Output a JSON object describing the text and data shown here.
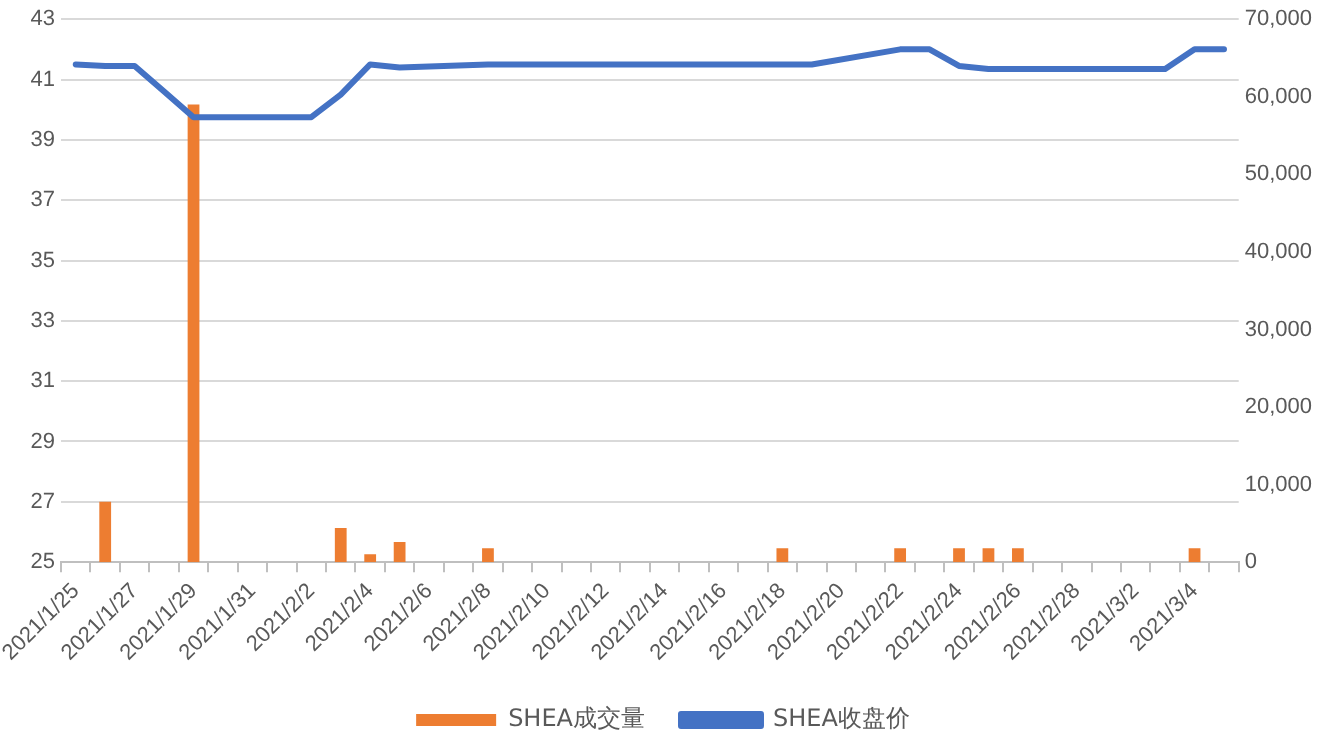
{
  "chart_data": {
    "type": "bar",
    "categories": [
      "2021/1/25",
      null,
      "2021/1/27",
      null,
      "2021/1/29",
      null,
      "2021/1/31",
      null,
      "2021/2/2",
      null,
      "2021/2/4",
      null,
      "2021/2/6",
      null,
      "2021/2/8",
      null,
      "2021/2/10",
      null,
      "2021/2/12",
      null,
      "2021/2/14",
      null,
      "2021/2/16",
      null,
      "2021/2/18",
      null,
      "2021/2/20",
      null,
      "2021/2/22",
      null,
      "2021/2/24",
      null,
      "2021/2/26",
      null,
      "2021/2/28",
      null,
      "2021/3/2",
      null,
      "2021/3/4",
      null
    ],
    "series": [
      {
        "name": "SHEA成交量",
        "axis": "y2",
        "color": "#ed7d31",
        "values": [
          null,
          7800,
          null,
          null,
          59000,
          null,
          null,
          null,
          null,
          4400,
          1000,
          2600,
          null,
          null,
          1800,
          null,
          null,
          null,
          null,
          null,
          null,
          null,
          null,
          null,
          1800,
          null,
          null,
          null,
          1800,
          null,
          1800,
          1800,
          1800,
          null,
          null,
          null,
          null,
          null,
          1800,
          null
        ]
      },
      {
        "name": "SHEA收盘价",
        "type": "line",
        "color": "#4472c4",
        "values": [
          41.5,
          41.45,
          41.45,
          40.6,
          39.75,
          null,
          null,
          39.75,
          39.75,
          40.5,
          41.5,
          41.4,
          null,
          null,
          41.5,
          41.5,
          41.5,
          null,
          null,
          null,
          null,
          null,
          null,
          null,
          41.5,
          41.5,
          null,
          null,
          42,
          42,
          41.45,
          41.35,
          41.35,
          null,
          null,
          41.35,
          41.35,
          41.35,
          42,
          42
        ]
      }
    ],
    "ylim": [
      25,
      43
    ],
    "yticks": [
      25,
      27,
      29,
      31,
      33,
      35,
      37,
      39,
      41,
      43
    ],
    "y2lim": [
      0,
      70000
    ],
    "y2ticks": [
      {
        "value": 0,
        "label": "0"
      },
      {
        "value": 10000,
        "label": "10,000"
      },
      {
        "value": 20000,
        "label": "20,000"
      },
      {
        "value": 30000,
        "label": "30,000"
      },
      {
        "value": 40000,
        "label": "40,000"
      },
      {
        "value": 50000,
        "label": "50,000"
      },
      {
        "value": 60000,
        "label": "60,000"
      },
      {
        "value": 70000,
        "label": "70,000"
      }
    ],
    "grid": "y",
    "legend": "bottom",
    "marker": "none",
    "line_style": "solid"
  }
}
